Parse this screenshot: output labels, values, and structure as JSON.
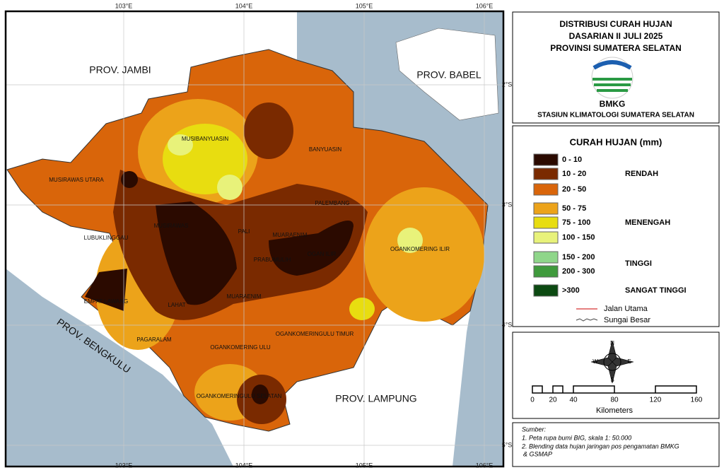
{
  "header": {
    "title_lines": [
      "DISTRIBUSI CURAH HUJAN",
      "DASARIAN II JULI 2025",
      "PROVINSI SUMATERA SELATAN"
    ],
    "agency": "BMKG",
    "station": "STASIUN KLIMATOLOGI SUMATERA SELATAN"
  },
  "legend": {
    "title": "CURAH HUJAN (mm)",
    "items": [
      {
        "range": "0 - 10",
        "color": "#2b0a00"
      },
      {
        "range": "10 - 20",
        "color": "#7a2a00"
      },
      {
        "range": "20 - 50",
        "color": "#d9650a"
      },
      {
        "range": "50 - 75",
        "color": "#eca31a"
      },
      {
        "range": "75 - 100",
        "color": "#e8dd10"
      },
      {
        "range": "100 - 150",
        "color": "#e8f27a"
      },
      {
        "range": "150 - 200",
        "color": "#8fd68a"
      },
      {
        "range": "200 - 300",
        "color": "#3f9a3c"
      },
      {
        "range": ">300",
        "color": "#0c4a12"
      }
    ],
    "groups": [
      "RENDAH",
      "MENENGAH",
      "TINGGI",
      "SANGAT TINGGI"
    ],
    "lines": [
      "Jalan Utama",
      "Sungai Besar"
    ]
  },
  "compass": [
    "N",
    "E",
    "S",
    "W"
  ],
  "scale": {
    "ticks": [
      0,
      20,
      40,
      80,
      120,
      160
    ],
    "unit": "Kilometers"
  },
  "sources": {
    "heading": "Sumber:",
    "lines": [
      "1. Peta rupa bumi BIG, skala 1: 50.000",
      "2. Blending data hujan jaringan pos pengamatan BMKG",
      "& GSMAP"
    ]
  },
  "map": {
    "longitudes": [
      "103°E",
      "104°E",
      "105°E",
      "106°E"
    ],
    "latitudes": [
      "2°S",
      "3°S",
      "4°S",
      "5°S"
    ],
    "provinces": [
      "PROV. JAMBI",
      "PROV. BABEL",
      "PROV. BENGKULU",
      "PROV. LAMPUNG"
    ],
    "regencies": [
      "MUSIBANYUASIN",
      "BANYUASIN",
      "MUSIRAWAS UTARA",
      "PALEMBANG",
      "MUSIRAWAS",
      "PALI",
      "MUARAENIM",
      "LUBUKLINGGAU",
      "OGANKOMERING ILIR",
      "PRABUMULIH",
      "OGAN ILIR",
      "EMPAT LAWANG",
      "LAHAT",
      "MUARAENIM",
      "OGANKOMERINGULU TIMUR",
      "PAGARALAM",
      "OGANKOMERING ULU",
      "OGANKOMERINGULU SELATAN"
    ]
  }
}
